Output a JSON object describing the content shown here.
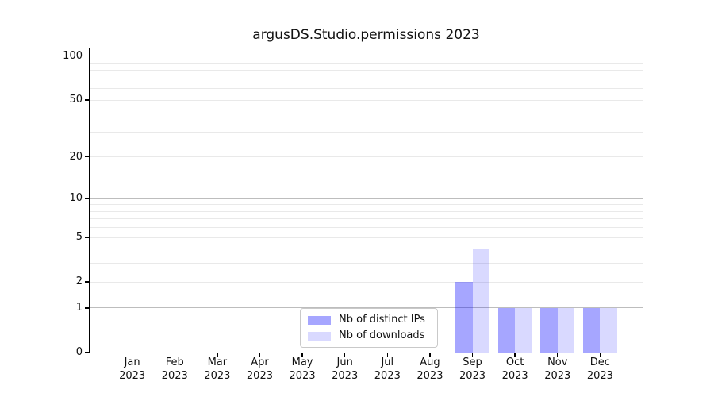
{
  "title": "argusDS.Studio.permissions 2023",
  "chart_data": {
    "type": "bar",
    "title": "argusDS.Studio.permissions 2023",
    "categories": [
      "Jan 2023",
      "Feb 2023",
      "Mar 2023",
      "Apr 2023",
      "May 2023",
      "Jun 2023",
      "Jul 2023",
      "Aug 2023",
      "Sep 2023",
      "Oct 2023",
      "Nov 2023",
      "Dec 2023"
    ],
    "series": [
      {
        "name": "Nb of distinct IPs",
        "color": "rgba(0,0,255,0.35)",
        "values": [
          0,
          0,
          0,
          0,
          0,
          0,
          0,
          0,
          2,
          1,
          1,
          1
        ]
      },
      {
        "name": "Nb of downloads",
        "color": "rgba(0,0,255,0.15)",
        "values": [
          0,
          0,
          0,
          0,
          0,
          0,
          0,
          0,
          4,
          1,
          1,
          1
        ]
      }
    ],
    "xlabel": "",
    "ylabel": "",
    "yscale": "log1p",
    "ylim": [
      0,
      112
    ],
    "y_axis_ticks": [
      0,
      1,
      2,
      5,
      10,
      20,
      50,
      100
    ],
    "y_major_gridlines": [
      1,
      10,
      100
    ],
    "y_minor_gridlines": [
      2,
      3,
      4,
      5,
      6,
      7,
      8,
      9,
      20,
      30,
      40,
      50,
      60,
      70,
      80,
      90
    ],
    "grid": true,
    "legend_position": "lower center-right inside plot"
  },
  "legend": {
    "items": [
      "Nb of distinct IPs",
      "Nb of downloads"
    ]
  },
  "colors": {
    "bar_distinct_ips": "rgba(0,0,255,0.35)",
    "bar_downloads": "rgba(0,0,255,0.15)",
    "grid_minor": "#e9e9e9",
    "grid_major": "#bdbdbd",
    "frame": "#000000",
    "background": "#ffffff",
    "text": "#111111"
  }
}
